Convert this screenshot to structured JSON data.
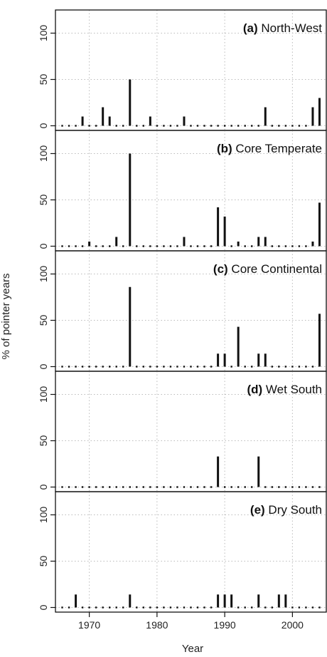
{
  "chart_data": {
    "type": "bar",
    "xlabel": "Year",
    "ylabel": "% of pointer years",
    "xlim": [
      1965,
      2005
    ],
    "ylim": [
      -5,
      125
    ],
    "x_ticks": [
      1970,
      1980,
      1990,
      2000
    ],
    "y_ticks": [
      0,
      50,
      100
    ],
    "grid": true,
    "year_range": [
      1966,
      2004
    ],
    "panels": [
      {
        "letter": "(a)",
        "name": "North-West",
        "bars": [
          {
            "x": 1969,
            "y": 10
          },
          {
            "x": 1972,
            "y": 20
          },
          {
            "x": 1973,
            "y": 10
          },
          {
            "x": 1976,
            "y": 50
          },
          {
            "x": 1979,
            "y": 10
          },
          {
            "x": 1984,
            "y": 10
          },
          {
            "x": 1996,
            "y": 20
          },
          {
            "x": 2003,
            "y": 20
          },
          {
            "x": 2004,
            "y": 30
          }
        ]
      },
      {
        "letter": "(b)",
        "name": "Core Temperate",
        "bars": [
          {
            "x": 1970,
            "y": 5
          },
          {
            "x": 1974,
            "y": 10
          },
          {
            "x": 1976,
            "y": 100
          },
          {
            "x": 1984,
            "y": 10
          },
          {
            "x": 1989,
            "y": 42
          },
          {
            "x": 1990,
            "y": 32
          },
          {
            "x": 1992,
            "y": 5
          },
          {
            "x": 1995,
            "y": 10
          },
          {
            "x": 1996,
            "y": 10
          },
          {
            "x": 2003,
            "y": 5
          },
          {
            "x": 2004,
            "y": 47
          }
        ]
      },
      {
        "letter": "(c)",
        "name": "Core Continental",
        "bars": [
          {
            "x": 1976,
            "y": 86
          },
          {
            "x": 1989,
            "y": 14
          },
          {
            "x": 1990,
            "y": 14
          },
          {
            "x": 1992,
            "y": 43
          },
          {
            "x": 1995,
            "y": 14
          },
          {
            "x": 1996,
            "y": 14
          },
          {
            "x": 2004,
            "y": 57
          }
        ]
      },
      {
        "letter": "(d)",
        "name": "Wet South",
        "bars": [
          {
            "x": 1989,
            "y": 33
          },
          {
            "x": 1995,
            "y": 33
          }
        ]
      },
      {
        "letter": "(e)",
        "name": "Dry South",
        "bars": [
          {
            "x": 1968,
            "y": 14
          },
          {
            "x": 1976,
            "y": 14
          },
          {
            "x": 1989,
            "y": 14
          },
          {
            "x": 1990,
            "y": 14
          },
          {
            "x": 1991,
            "y": 14
          },
          {
            "x": 1995,
            "y": 14
          },
          {
            "x": 1998,
            "y": 14
          },
          {
            "x": 1999,
            "y": 14
          }
        ]
      }
    ]
  }
}
